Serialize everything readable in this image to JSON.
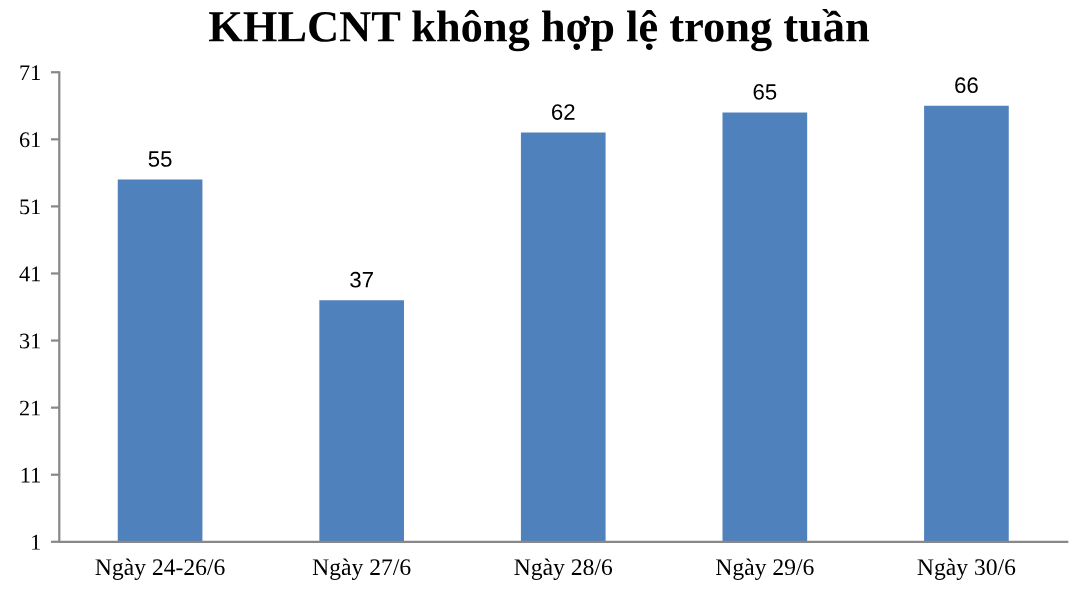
{
  "chart_data": {
    "type": "bar",
    "title": "KHLCNT không hợp lệ trong tuần",
    "categories": [
      "Ngày 24-26/6",
      "Ngày 27/6",
      "Ngày 28/6",
      "Ngày 29/6",
      "Ngày 30/6"
    ],
    "values": [
      55,
      37,
      62,
      65,
      66
    ],
    "color": "#4f81bd",
    "ylim": [
      1,
      71
    ],
    "yticks": [
      1,
      11,
      21,
      31,
      41,
      51,
      61,
      71
    ],
    "grid": false,
    "data_labels": true
  }
}
